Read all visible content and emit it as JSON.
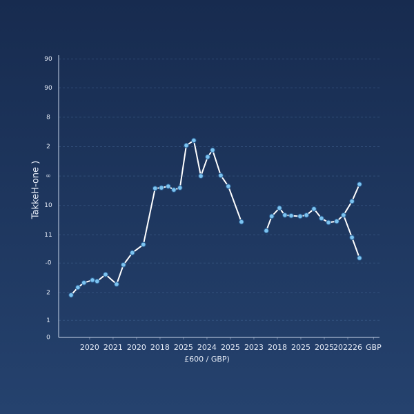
{
  "chart_data": {
    "type": "line",
    "y_label": "TakkeH-one )",
    "x_label": "£600 / GBP)",
    "xlim": [
      -0.32,
      13.5
    ],
    "ylim": [
      0,
      9.6
    ],
    "xticks": [
      {
        "value": 1,
        "label": "2020"
      },
      {
        "value": 2,
        "label": "2021"
      },
      {
        "value": 3,
        "label": "2020"
      },
      {
        "value": 4,
        "label": "2018"
      },
      {
        "value": 5,
        "label": "2025"
      },
      {
        "value": 6,
        "label": "2024"
      },
      {
        "value": 7,
        "label": "2025"
      },
      {
        "value": 8,
        "label": "2023"
      },
      {
        "value": 9,
        "label": "2018"
      },
      {
        "value": 10,
        "label": "2025"
      },
      {
        "value": 11,
        "label": "2025"
      },
      {
        "value": 12,
        "label": "202226"
      },
      {
        "value": 13.1,
        "label": "GBP"
      }
    ],
    "yticks": [
      0,
      {
        "value": 0.58,
        "label": "1"
      },
      {
        "value": 1.53,
        "label": "2"
      },
      {
        "value": 2.53,
        "label": "-0"
      },
      {
        "value": 3.49,
        "label": "11"
      },
      {
        "value": 4.49,
        "label": "10"
      },
      {
        "value": 5.49,
        "label": "∞"
      },
      {
        "value": 6.49,
        "label": "2"
      },
      {
        "value": 7.49,
        "label": "8"
      },
      {
        "value": 8.49,
        "label": "90"
      },
      {
        "value": 9.47,
        "label": "90"
      }
    ],
    "grid": true,
    "series": [
      {
        "color": "#ffffff",
        "marker_color": "#7cc3f0",
        "x": [
          0.21,
          0.5,
          0.76,
          1.12,
          1.32,
          1.68,
          2.15,
          2.44,
          2.82,
          3.29,
          3.79,
          4.06,
          4.35,
          4.59,
          4.85,
          5.12,
          5.44,
          5.74,
          6.03,
          6.24,
          6.59,
          6.91,
          7.47,
          null,
          8.53,
          8.76,
          9.09,
          9.32,
          9.59,
          9.97,
          10.24,
          10.56,
          10.88,
          11.18,
          11.53,
          11.82,
          12.18,
          12.5
        ],
        "values": [
          1.44,
          1.7,
          1.86,
          1.95,
          1.91,
          2.14,
          1.81,
          2.47,
          2.88,
          3.16,
          5.07,
          5.09,
          5.14,
          5.02,
          5.09,
          6.53,
          6.7,
          5.49,
          6.14,
          6.37,
          5.51,
          5.14,
          3.93,
          null,
          3.63,
          4.12,
          4.4,
          4.16,
          4.14,
          4.12,
          4.16,
          4.37,
          4.05,
          3.91,
          3.95,
          4.16,
          4.63,
          5.21
        ]
      },
      {
        "color": "#ffffff",
        "marker_color": "#7cc3f0",
        "x": [
          11.82,
          12.18,
          12.5
        ],
        "values": [
          4.16,
          3.4,
          2.7
        ]
      }
    ]
  }
}
